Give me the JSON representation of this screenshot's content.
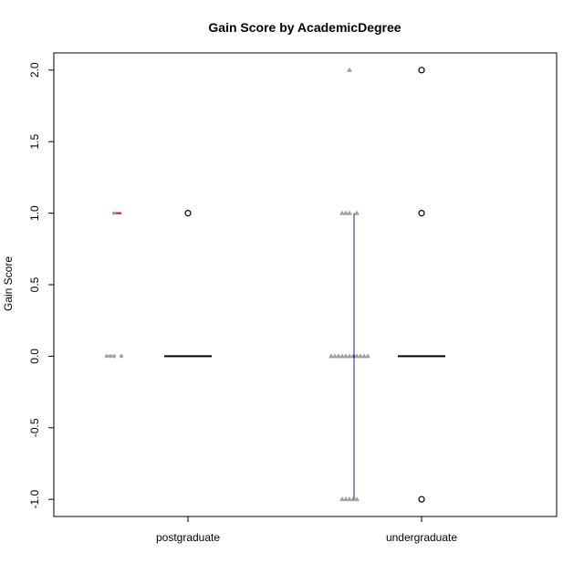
{
  "chart_data": {
    "type": "boxplot",
    "title": "Gain Score by AcademicDegree",
    "xlabel": "",
    "ylabel": "Gain Score",
    "ylim": [
      -1.12,
      2.12
    ],
    "yticks": [
      2.0,
      1.5,
      1.0,
      0.5,
      0.0,
      -0.5,
      -1.0
    ],
    "ytick_labels": [
      "2.0",
      "1.5",
      "1.0",
      "0.5",
      "0.0",
      "-0.5",
      "-1.0"
    ],
    "categories": [
      "postgraduate",
      "undergraduate"
    ],
    "grid": false,
    "colors": {
      "jitter_points": "#a0a0a0",
      "postgraduate_marker": "#e0002a",
      "undergraduate_interval": "#1a1acc",
      "box_line": "#000000",
      "outlier": "#000000"
    },
    "raw_points": [
      {
        "group": "postgraduate",
        "marker": "circle",
        "y": [
          1,
          0,
          0,
          0,
          0
        ]
      },
      {
        "group": "undergraduate",
        "marker": "triangle",
        "y": [
          2,
          1,
          1,
          1,
          1,
          0,
          0,
          0,
          0,
          0,
          0,
          0,
          0,
          0,
          0,
          0,
          -1,
          -1,
          -1,
          -1,
          -1
        ]
      }
    ],
    "group_summaries": [
      {
        "group": "postgraduate",
        "center": 1.0,
        "interval": [
          1.0,
          1.0
        ]
      },
      {
        "group": "undergraduate",
        "center": 0.0,
        "interval": [
          -1.0,
          1.0
        ]
      }
    ],
    "boxplots": [
      {
        "group": "postgraduate",
        "min": 0,
        "q1": 0,
        "median": 0,
        "q3": 0,
        "max": 0,
        "outliers": [
          1.0
        ]
      },
      {
        "group": "undergraduate",
        "min": 0,
        "q1": 0,
        "median": 0,
        "q3": 0,
        "max": 0,
        "outliers": [
          2.0,
          1.0,
          -1.0
        ]
      }
    ]
  }
}
